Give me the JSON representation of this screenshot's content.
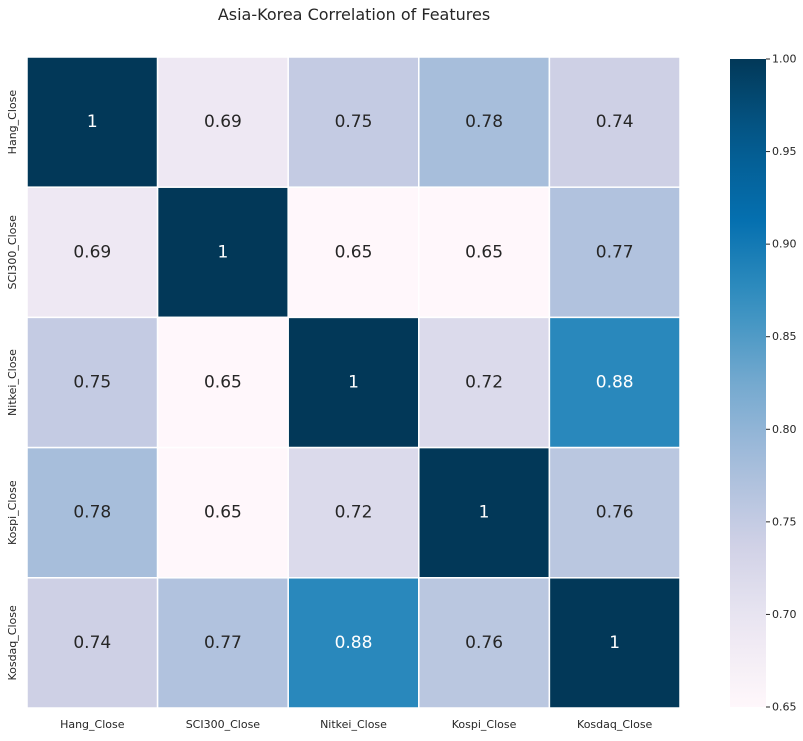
{
  "chart_data": {
    "type": "heatmap",
    "title": "Asia-Korea Correlation of Features",
    "row_labels": [
      "Hang_Close",
      "SCI300_Close",
      "Nitkei_Close",
      "Kospi_Close",
      "Kosdaq_Close"
    ],
    "col_labels": [
      "Hang_Close",
      "SCI300_Close",
      "Nitkei_Close",
      "Kospi_Close",
      "Kosdaq_Close"
    ],
    "values": [
      [
        1,
        0.69,
        0.75,
        0.78,
        0.74
      ],
      [
        0.69,
        1,
        0.65,
        0.65,
        0.77
      ],
      [
        0.75,
        0.65,
        1,
        0.72,
        0.88
      ],
      [
        0.78,
        0.65,
        0.72,
        1,
        0.76
      ],
      [
        0.74,
        0.77,
        0.88,
        0.76,
        1
      ]
    ],
    "annotations": [
      [
        "1",
        "0.69",
        "0.75",
        "0.78",
        "0.74"
      ],
      [
        "0.69",
        "1",
        "0.65",
        "0.65",
        "0.77"
      ],
      [
        "0.75",
        "0.65",
        "1",
        "0.72",
        "0.88"
      ],
      [
        "0.78",
        "0.65",
        "0.72",
        "1",
        "0.76"
      ],
      [
        "0.74",
        "0.77",
        "0.88",
        "0.76",
        "1"
      ]
    ],
    "colorbar": {
      "min": 0.65,
      "max": 1.0,
      "ticks": [
        0.65,
        0.7,
        0.75,
        0.8,
        0.85,
        0.9,
        0.95,
        1.0
      ],
      "tick_labels": [
        "0.65",
        "0.70",
        "0.75",
        "0.80",
        "0.85",
        "0.90",
        "0.95",
        "1.00"
      ],
      "colormap": "PuBu"
    },
    "cell_border_color": "#ffffff",
    "dark_text_color": "#262626",
    "light_text_color": "#ffffff"
  }
}
